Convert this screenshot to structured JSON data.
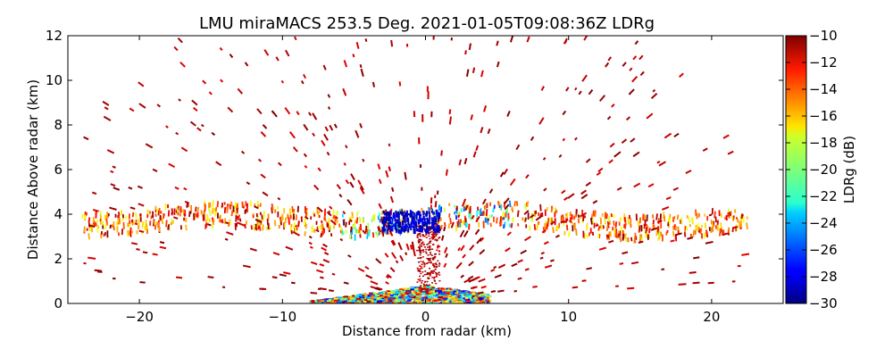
{
  "chart_data": {
    "type": "heatmap",
    "title": "LMU miraMACS 253.5 Deg. 2021-01-05T09:08:36Z  LDRg",
    "xlabel": "Distance from radar (km)",
    "ylabel": "Distance Above radar  (km)",
    "xlim": [
      -25,
      25
    ],
    "ylim": [
      0,
      12
    ],
    "xticks": [
      -20,
      -10,
      0,
      10,
      20
    ],
    "xtick_labels": [
      "−20",
      "−10",
      "0",
      "10",
      "20"
    ],
    "yticks": [
      0,
      2,
      4,
      6,
      8,
      10,
      12
    ],
    "ytick_labels": [
      "0",
      "2",
      "4",
      "6",
      "8",
      "10",
      "12"
    ],
    "colorbar": {
      "label": "LDRg (dB)",
      "range": [
        -30,
        -10
      ],
      "colormap": "jet",
      "ticks": [
        -10,
        -12,
        -14,
        -16,
        -18,
        -20,
        -22,
        -24,
        -26,
        -28,
        -30
      ],
      "tick_labels": [
        "−10",
        "−12",
        "−14",
        "−16",
        "−18",
        "−20",
        "−22",
        "−24",
        "−26",
        "−28",
        "−30"
      ]
    },
    "features": [
      {
        "name": "melting-layer band",
        "x_range": [
          -24,
          22.5
        ],
        "y_range": [
          3.2,
          4.3
        ],
        "ldr_range": [
          -30,
          -10
        ]
      },
      {
        "name": "near-radar clutter",
        "x_range": [
          -8,
          4.5
        ],
        "y_range": [
          0,
          0.8
        ],
        "ldr_range": [
          -28,
          -10
        ]
      },
      {
        "name": "high-LDR scattered echoes",
        "x_range": [
          -24,
          22.5
        ],
        "y_range": [
          0,
          12
        ],
        "ldr_range": [
          -12,
          -10
        ]
      },
      {
        "name": "low-LDR core",
        "x_range": [
          -3,
          1
        ],
        "y_range": [
          3.2,
          4.1
        ],
        "ldr_range": [
          -30,
          -27
        ]
      }
    ]
  }
}
